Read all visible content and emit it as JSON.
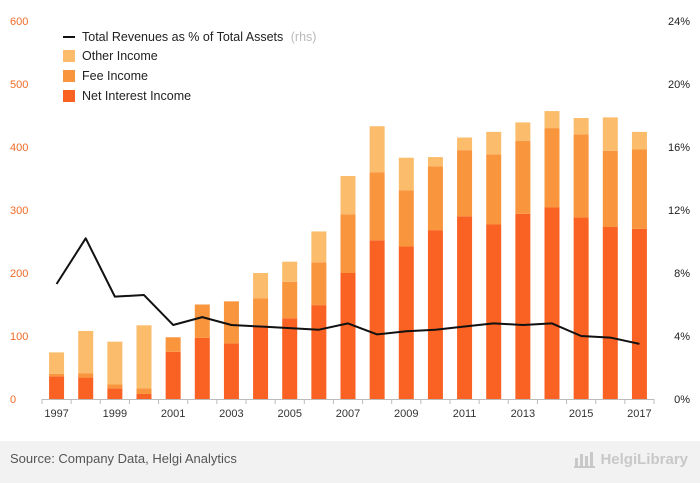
{
  "chart_data": {
    "type": "bar",
    "stacked": true,
    "categories": [
      "1997",
      "1998",
      "1999",
      "2000",
      "2001",
      "2002",
      "2003",
      "2004",
      "2005",
      "2006",
      "2007",
      "2008",
      "2009",
      "2010",
      "2011",
      "2012",
      "2013",
      "2014",
      "2015",
      "2016",
      "2017"
    ],
    "x_tick_labels": [
      "1997",
      "1999",
      "2001",
      "2003",
      "2005",
      "2007",
      "2009",
      "2011",
      "2013",
      "2015",
      "2017"
    ],
    "series": [
      {
        "name": "Net Interest Income",
        "color": "#f96223",
        "values": [
          36,
          34,
          17,
          8,
          75,
          97,
          88,
          117,
          128,
          149,
          200,
          252,
          242,
          268,
          290,
          277,
          294,
          304,
          288,
          273,
          270
        ]
      },
      {
        "name": "Fee Income",
        "color": "#f9953d",
        "values": [
          4,
          7,
          6,
          9,
          23,
          53,
          67,
          43,
          58,
          68,
          93,
          108,
          89,
          101,
          105,
          111,
          116,
          126,
          132,
          121,
          126
        ]
      },
      {
        "name": "Other Income",
        "color": "#fbbc6b",
        "values": [
          34,
          67,
          68,
          100,
          0,
          0,
          0,
          40,
          32,
          49,
          61,
          73,
          52,
          15,
          20,
          36,
          29,
          27,
          26,
          53,
          28
        ]
      }
    ],
    "line_series": {
      "name": "Total Revenues as % of Total Assets",
      "name_note": "(rhs)",
      "color": "#111111",
      "axis": "right",
      "values": [
        7.3,
        10.2,
        6.5,
        6.6,
        4.7,
        5.2,
        4.7,
        4.6,
        4.5,
        4.4,
        4.8,
        4.1,
        4.3,
        4.4,
        4.6,
        4.8,
        4.7,
        4.8,
        4.0,
        3.9,
        3.5
      ]
    },
    "y_left": {
      "ticks": [
        "0",
        "100",
        "200",
        "300",
        "400",
        "500",
        "600"
      ],
      "min": 0,
      "max": 600,
      "color": "#f06a26"
    },
    "y_right": {
      "ticks": [
        "0%",
        "4%",
        "8%",
        "12%",
        "16%",
        "20%",
        "24%"
      ],
      "min": 0,
      "max": 24
    },
    "legend": {
      "position": "top-left",
      "entries": [
        "Total Revenues as % of Total Assets",
        "Other Income",
        "Fee Income",
        "Net Interest Income"
      ]
    },
    "grid": false
  },
  "footer": {
    "source": "Source: Company Data, Helgi Analytics",
    "brand": "HelgiLibrary",
    "brand_icon": "building-icon"
  }
}
